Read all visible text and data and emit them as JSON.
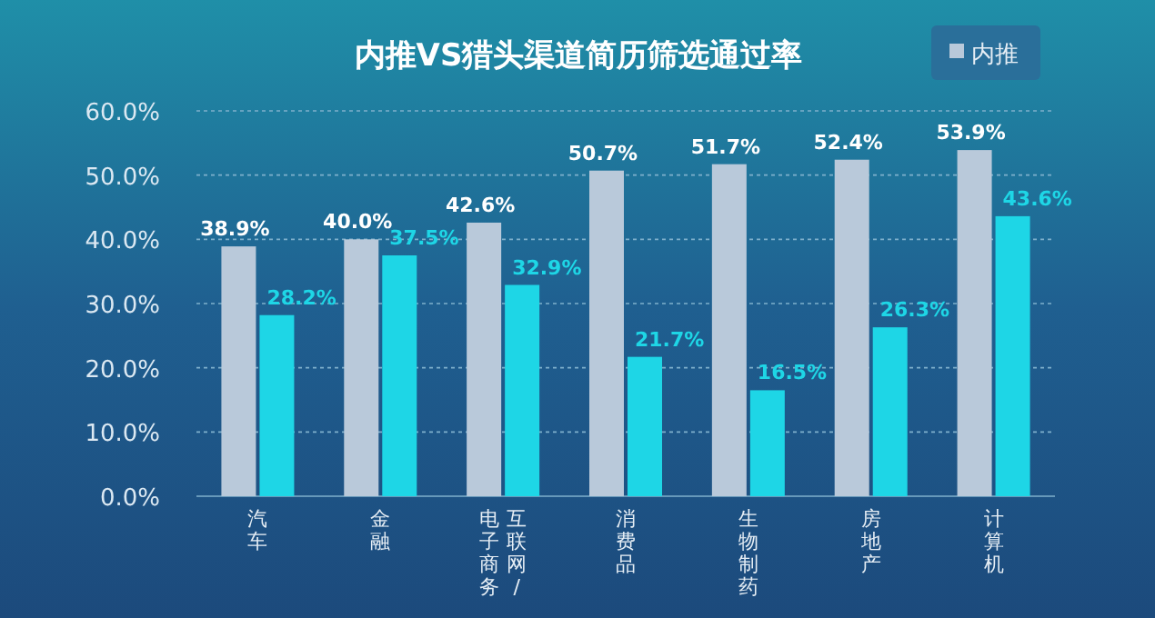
{
  "chart_data": {
    "type": "bar",
    "title": "内推VS猎头渠道简历筛选通过率",
    "categories": [
      "汽车",
      "金融",
      "互联网/电子商务",
      "消费品",
      "生物制药",
      "房地产",
      "计算机"
    ],
    "series": [
      {
        "name": "内推",
        "color": "#b9c9da",
        "values": [
          38.9,
          40.0,
          42.6,
          50.7,
          51.7,
          52.4,
          53.9
        ],
        "value_labels": [
          "38.9%",
          "40.0%",
          "42.6%",
          "50.7%",
          "51.7%",
          "52.4%",
          "53.9%"
        ]
      },
      {
        "color": "#1ed6e6",
        "values": [
          28.2,
          37.5,
          32.9,
          21.7,
          16.5,
          26.3,
          43.6
        ],
        "value_labels": [
          "28.2%",
          "37.5%",
          "32.9%",
          "21.7%",
          "16.5%",
          "26.3%",
          "43.6%"
        ]
      }
    ],
    "ylim": [
      0,
      60
    ],
    "yticks": [
      {
        "value": 0,
        "label": "0.0%"
      },
      {
        "value": 10,
        "label": "10.0%"
      },
      {
        "value": 20,
        "label": "20.0%"
      },
      {
        "value": 30,
        "label": "30.0%"
      },
      {
        "value": 40,
        "label": "40.0%"
      },
      {
        "value": 50,
        "label": "50.0%"
      },
      {
        "value": 60,
        "label": "60.0%"
      }
    ],
    "grid": "y",
    "legend": "top right"
  }
}
